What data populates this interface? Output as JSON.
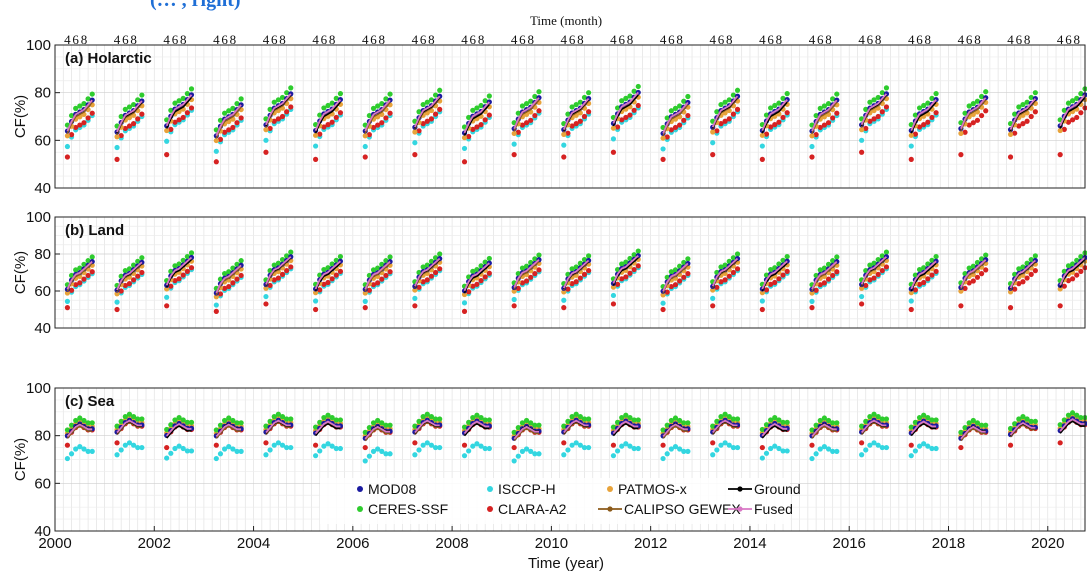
{
  "header": {
    "caption_fragment": "(… , right)"
  },
  "chart_data": {
    "type": "scatter",
    "top_axis": {
      "label": "Time (month)",
      "tick_labels": [
        "4",
        "6",
        "8"
      ]
    },
    "x_axis": {
      "label": "Time (year)",
      "min": 2000,
      "max": 2020.75,
      "tick_labels": [
        "2000",
        "2002",
        "2004",
        "2006",
        "2008",
        "2010",
        "2012",
        "2014",
        "2016",
        "2018",
        "2020"
      ]
    },
    "ylabel": "CF(%)",
    "ylim": [
      40,
      100
    ],
    "yticks": [
      "40",
      "60",
      "80",
      "100"
    ],
    "grid": true,
    "legend": {
      "placement": "bottom-center of panel (c)",
      "items": [
        {
          "name": "MOD08",
          "color": "#1a1aa0",
          "style": "dot"
        },
        {
          "name": "CERES-SSF",
          "color": "#2ecc2e",
          "style": "dot"
        },
        {
          "name": "ISCCP-H",
          "color": "#33d6e0",
          "style": "dot"
        },
        {
          "name": "CLARA-A2",
          "color": "#d62222",
          "style": "dot"
        },
        {
          "name": "PATMOS-x",
          "color": "#e8a33a",
          "style": "dot"
        },
        {
          "name": "CALIPSO GEWEX",
          "color": "#8b5a1a",
          "style": "line-dot"
        },
        {
          "name": "Ground",
          "color": "#000000",
          "style": "line-dot"
        },
        {
          "name": "Fused",
          "color": "#d877c4",
          "style": "line-dot"
        }
      ]
    },
    "months": [
      4,
      5,
      6,
      7,
      8,
      9,
      10
    ],
    "panels": [
      {
        "title": "(a) Holarctic",
        "ground_by_month": [
          64,
          68,
          71,
          72,
          73,
          75,
          77
        ],
        "offsets": {
          "MOD08": 0.5,
          "CERES-SSF": 3,
          "ISCCP-H": -6,
          "CLARA-A2": -5,
          "PATMOS-x": -1.5,
          "CALIPSO GEWEX": -0.5,
          "Fused": 0.5
        },
        "clara_april": 53,
        "yearly_shift": [
          0,
          -1,
          1,
          -2,
          2,
          -1,
          0,
          1,
          -2,
          1,
          0,
          2,
          -1,
          1,
          -1,
          0,
          2,
          -1,
          1,
          0,
          1
        ]
      },
      {
        "title": "(b) Land",
        "ground_by_month": [
          61,
          66,
          69,
          70,
          72,
          74,
          76
        ],
        "offsets": {
          "MOD08": 0.5,
          "CERES-SSF": 3,
          "ISCCP-H": -6,
          "CLARA-A2": -5,
          "PATMOS-x": -1.5,
          "CALIPSO GEWEX": -0.5,
          "Fused": 0.5
        },
        "clara_april": 51,
        "yearly_shift": [
          0,
          -1,
          1,
          -2,
          2,
          -1,
          0,
          1,
          -2,
          1,
          0,
          2,
          -1,
          1,
          -1,
          0,
          2,
          -1,
          1,
          0,
          1
        ]
      },
      {
        "title": "(c) Sea",
        "ground_by_month": [
          80,
          82,
          84,
          85,
          84,
          83,
          83
        ],
        "offsets": {
          "MOD08": 0.5,
          "CERES-SSF": 3,
          "ISCCP-H": -9,
          "CLARA-A2": 0,
          "PATMOS-x": 1.5,
          "CALIPSO GEWEX": -0.5,
          "Fused": 0.3
        },
        "clara_april": 76,
        "yearly_shift": [
          0,
          1,
          -1,
          0,
          1,
          0,
          -1,
          1,
          0,
          -1,
          1,
          0,
          0,
          1,
          -1,
          0,
          1,
          0,
          -1,
          0,
          1
        ]
      }
    ]
  }
}
